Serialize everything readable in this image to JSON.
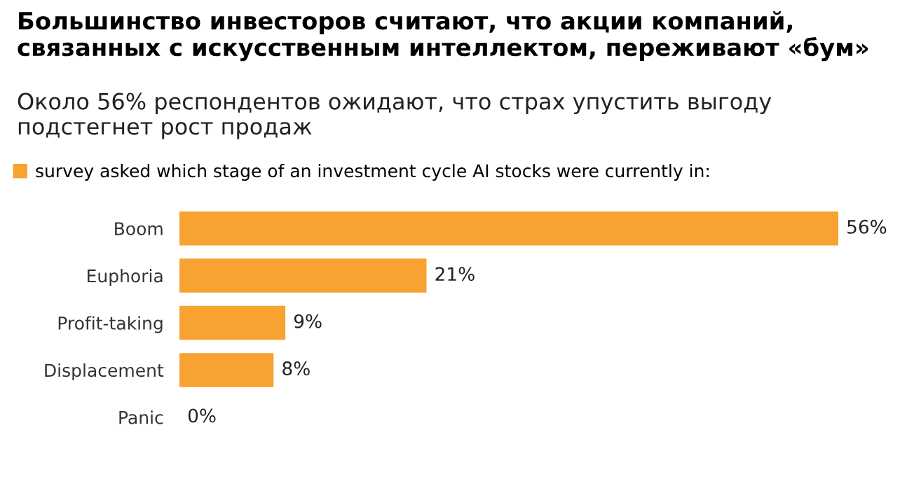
{
  "chart_data": {
    "type": "bar",
    "orientation": "horizontal",
    "title": "Большинство инвесторов считают, что акции компаний,\nсвязанных с искусственным интеллектом, переживают «бум»",
    "subtitle": "Около 56% респондентов ожидают, что страх упустить выгоду\nподстегнет рост продаж",
    "categories": [
      "Boom",
      "Euphoria",
      "Profit-taking",
      "Displacement",
      "Panic"
    ],
    "series": [
      {
        "name": "survey asked which stage of an investment cycle AI stocks were currently in:",
        "color": "#f7a231",
        "values": [
          56,
          21,
          9,
          8,
          0
        ],
        "value_labels": [
          "56%",
          "21%",
          "9%",
          "8%",
          "0%"
        ]
      }
    ],
    "legend": "top left",
    "grid": false
  }
}
